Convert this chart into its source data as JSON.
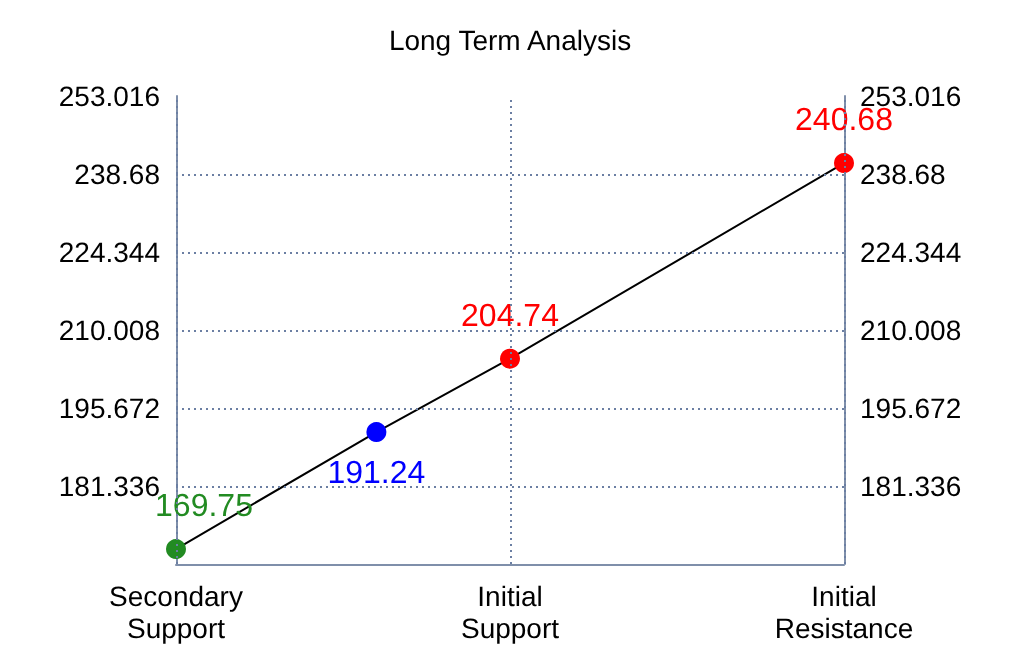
{
  "chart_data": {
    "type": "line",
    "title": "Long Term Analysis",
    "categories": [
      "Secondary\nSupport",
      null,
      null,
      null,
      null,
      "Initial\nSupport",
      null,
      null,
      null,
      null,
      "Initial\nResistance"
    ],
    "series": [
      {
        "color": "#000000",
        "colors": [
          "#228b22",
          null,
          null,
          "#0000ff",
          null,
          "#ff0000",
          null,
          null,
          null,
          null,
          "#ff0000"
        ],
        "values": [
          169.75,
          null,
          null,
          191.24,
          null,
          204.74,
          null,
          null,
          null,
          null,
          240.68
        ]
      }
    ],
    "ylim": [
      167,
      253.016
    ],
    "yticks": [
      181.336,
      195.672,
      210.008,
      224.344,
      238.68,
      253.016
    ],
    "y2lim": [
      167,
      253.016
    ],
    "y2ticks": [
      181.336,
      195.672,
      210.008,
      224.344,
      238.68,
      253.016
    ],
    "grid": true,
    "marker": "circle",
    "line_style": "solid",
    "data_labels": true
  }
}
